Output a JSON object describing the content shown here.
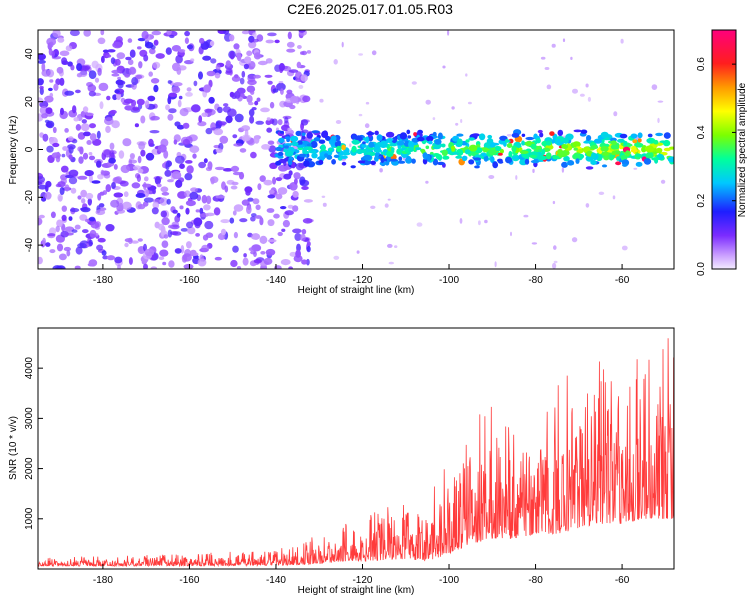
{
  "figure": {
    "title": "C2E6.2025.017.01.05.R03"
  },
  "colors": {
    "snr_line": "#ff3b3b",
    "spectrogram_background": "#ffffff"
  },
  "chart_data": [
    {
      "type": "heatmap",
      "xlabel": "Height of straight line (km)",
      "ylabel": "Frequency (Hz)",
      "xlim": [
        -195,
        -48
      ],
      "ylim": [
        -50,
        50
      ],
      "x_ticks": [
        -180,
        -160,
        -140,
        -120,
        -100,
        -80,
        -60
      ],
      "y_ticks": [
        -40,
        -20,
        0,
        20,
        40
      ],
      "colormap": "rainbow (white/violet → blue → cyan → green → yellow → orange → red → magenta)",
      "colorbar": {
        "label": "Normalized spectral amplitude",
        "range": [
          0.0,
          0.7
        ],
        "ticks": [
          0.0,
          0.2,
          0.4,
          0.6
        ]
      },
      "regions": [
        {
          "x_range": [
            -195,
            -140
          ],
          "frequency_range": [
            -50,
            50
          ],
          "amplitude": "low (0.0–0.15), broadband noise"
        },
        {
          "x_range": [
            -140,
            -48
          ],
          "frequency_range": [
            -8,
            8
          ],
          "amplitude": "0.1–0.7, narrow band centred near 0 Hz"
        }
      ]
    },
    {
      "type": "line",
      "xlabel": "Height of straight line (km)",
      "ylabel": "SNR (10 * v/v)",
      "xlim": [
        -195,
        -48
      ],
      "ylim": [
        0,
        4800
      ],
      "x_ticks": [
        -180,
        -160,
        -140,
        -120,
        -100,
        -80,
        -60
      ],
      "y_ticks": [
        1000,
        2000,
        3000,
        4000
      ],
      "series": [
        {
          "envelope_x": [
            -195,
            -180,
            -160,
            -140,
            -130,
            -125,
            -120,
            -115,
            -110,
            -105,
            -100,
            -95,
            -90,
            -85,
            -80,
            -75,
            -70,
            -65,
            -60,
            -55,
            -50,
            -48
          ],
          "envelope_min": [
            60,
            60,
            60,
            70,
            100,
            150,
            150,
            180,
            200,
            150,
            300,
            500,
            600,
            600,
            700,
            700,
            800,
            900,
            900,
            1000,
            1000,
            1000
          ],
          "envelope_max": [
            250,
            250,
            300,
            400,
            700,
            900,
            1000,
            1300,
            1400,
            1200,
            2700,
            3300,
            3600,
            3200,
            3400,
            3800,
            4300,
            4200,
            4300,
            4500,
            4600,
            4600
          ]
        }
      ]
    }
  ]
}
